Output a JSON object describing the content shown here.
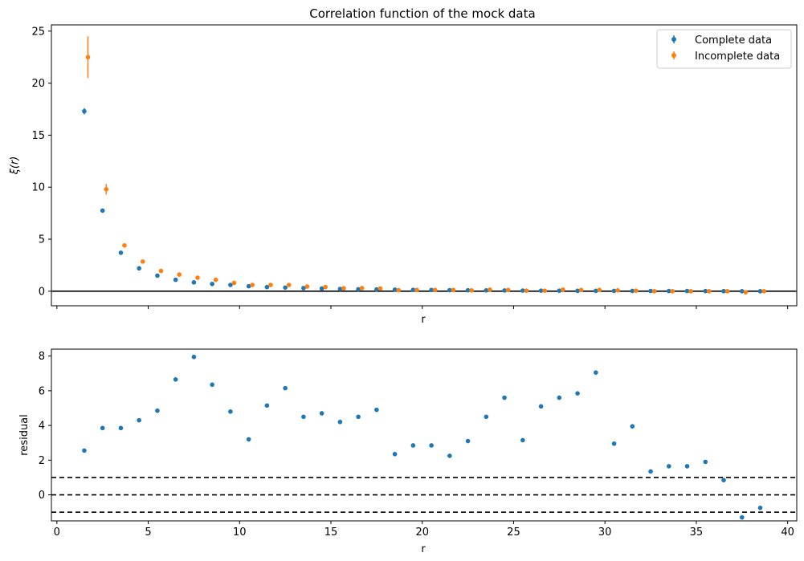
{
  "figure": {
    "background": "#ffffff"
  },
  "chart_data": [
    {
      "type": "scatter",
      "title": "Correlation function of the mock data",
      "xlabel": "r",
      "ylabel": "ξ(r)",
      "xlim": [
        -0.3,
        40.5
      ],
      "ylim": [
        -1.4,
        25.6
      ],
      "xticks": [
        0,
        5,
        10,
        15,
        20,
        25,
        30,
        35,
        40
      ],
      "xtick_labels_visible": false,
      "yticks": [
        0,
        5,
        10,
        15,
        20,
        25
      ],
      "reference_lines": [
        {
          "y": 0,
          "style": "solid",
          "color": "#000000"
        }
      ],
      "grid": false,
      "legend": {
        "placement": "top-right"
      },
      "series": [
        {
          "name": "Complete data",
          "color": "#1f77b4",
          "x": [
            1.5,
            2.5,
            3.5,
            4.5,
            5.5,
            6.5,
            7.5,
            8.5,
            9.5,
            10.5,
            11.5,
            12.5,
            13.5,
            14.5,
            15.5,
            16.5,
            17.5,
            18.5,
            19.5,
            20.5,
            21.5,
            22.5,
            23.5,
            24.5,
            25.5,
            26.5,
            27.5,
            28.5,
            29.5,
            30.5,
            31.5,
            32.5,
            33.5,
            34.5,
            35.5,
            36.5,
            37.5,
            38.5
          ],
          "y": [
            17.3,
            7.75,
            3.7,
            2.2,
            1.5,
            1.1,
            0.85,
            0.7,
            0.6,
            0.48,
            0.4,
            0.35,
            0.3,
            0.26,
            0.22,
            0.19,
            0.17,
            0.15,
            0.13,
            0.12,
            0.1,
            0.09,
            0.08,
            0.07,
            0.06,
            0.05,
            0.05,
            0.04,
            0.04,
            0.035,
            0.03,
            0.025,
            0.02,
            0.02,
            0.015,
            0.01,
            0.0,
            0.0
          ],
          "yerr": [
            0.3,
            0.12,
            0.1,
            0.08,
            0.06,
            0.05,
            0.05,
            0.04,
            0.04,
            0.04,
            0.03,
            0.03,
            0.03,
            0.03,
            0.03,
            0.03,
            0.03,
            0.03,
            0.03,
            0.03,
            0.03,
            0.03,
            0.03,
            0.03,
            0.03,
            0.03,
            0.03,
            0.03,
            0.03,
            0.03,
            0.03,
            0.03,
            0.03,
            0.03,
            0.03,
            0.03,
            0.03,
            0.03
          ]
        },
        {
          "name": "Incomplete data",
          "color": "#ff7f0e",
          "x": [
            1.7,
            2.7,
            3.7,
            4.7,
            5.7,
            6.7,
            7.7,
            8.7,
            9.7,
            10.7,
            11.7,
            12.7,
            13.7,
            14.7,
            15.7,
            16.7,
            17.7,
            18.7,
            19.7,
            20.7,
            21.7,
            22.7,
            23.7,
            24.7,
            25.7,
            26.7,
            27.7,
            28.7,
            29.7,
            30.7,
            31.7,
            32.7,
            33.7,
            34.7,
            35.7,
            36.7,
            37.7,
            38.7
          ],
          "y": [
            22.5,
            9.8,
            4.4,
            2.85,
            1.95,
            1.6,
            1.3,
            1.1,
            0.8,
            0.6,
            0.6,
            0.6,
            0.45,
            0.4,
            0.28,
            0.3,
            0.25,
            0.1,
            0.12,
            0.12,
            0.12,
            0.08,
            0.15,
            0.12,
            0.05,
            0.05,
            0.15,
            0.12,
            0.12,
            0.08,
            0.05,
            0.0,
            0.0,
            0.0,
            0.0,
            0.0,
            -0.1,
            0.0
          ],
          "yerr": [
            2.0,
            0.5,
            0.2,
            0.12,
            0.1,
            0.1,
            0.08,
            0.07,
            0.07,
            0.06,
            0.06,
            0.06,
            0.06,
            0.06,
            0.06,
            0.06,
            0.06,
            0.06,
            0.06,
            0.06,
            0.06,
            0.06,
            0.06,
            0.06,
            0.06,
            0.06,
            0.06,
            0.06,
            0.06,
            0.06,
            0.06,
            0.06,
            0.06,
            0.06,
            0.06,
            0.06,
            0.06,
            0.06
          ]
        }
      ]
    },
    {
      "type": "scatter",
      "title": "",
      "xlabel": "r",
      "ylabel": "residual",
      "xlim": [
        -0.3,
        40.5
      ],
      "ylim": [
        -1.5,
        8.4
      ],
      "xticks": [
        0,
        5,
        10,
        15,
        20,
        25,
        30,
        35,
        40
      ],
      "yticks": [
        0,
        2,
        4,
        6,
        8
      ],
      "ytick_labels": [
        "0",
        "2",
        "4",
        "6",
        "8"
      ],
      "reference_lines": [
        {
          "y": 1,
          "style": "dashed",
          "color": "#000000"
        },
        {
          "y": 0,
          "style": "dashed",
          "color": "#000000"
        },
        {
          "y": -1,
          "style": "dashed",
          "color": "#000000"
        }
      ],
      "grid": false,
      "series": [
        {
          "color": "#1f77b4",
          "x": [
            1.5,
            2.5,
            3.5,
            4.5,
            5.5,
            6.5,
            7.5,
            8.5,
            9.5,
            10.5,
            11.5,
            12.5,
            13.5,
            14.5,
            15.5,
            16.5,
            17.5,
            18.5,
            19.5,
            20.5,
            21.5,
            22.5,
            23.5,
            24.5,
            25.5,
            26.5,
            27.5,
            28.5,
            29.5,
            30.5,
            31.5,
            32.5,
            33.5,
            34.5,
            35.5,
            36.5,
            37.5,
            38.5
          ],
          "y": [
            2.55,
            3.85,
            3.85,
            4.3,
            4.85,
            6.65,
            7.95,
            6.35,
            4.8,
            3.2,
            5.15,
            6.15,
            4.5,
            4.7,
            4.2,
            4.5,
            4.9,
            2.35,
            2.85,
            2.85,
            2.25,
            3.1,
            4.5,
            5.6,
            3.15,
            5.1,
            5.6,
            5.85,
            7.05,
            2.95,
            3.95,
            1.35,
            1.65,
            1.65,
            1.9,
            0.85,
            -1.3,
            -0.75
          ]
        }
      ]
    }
  ]
}
